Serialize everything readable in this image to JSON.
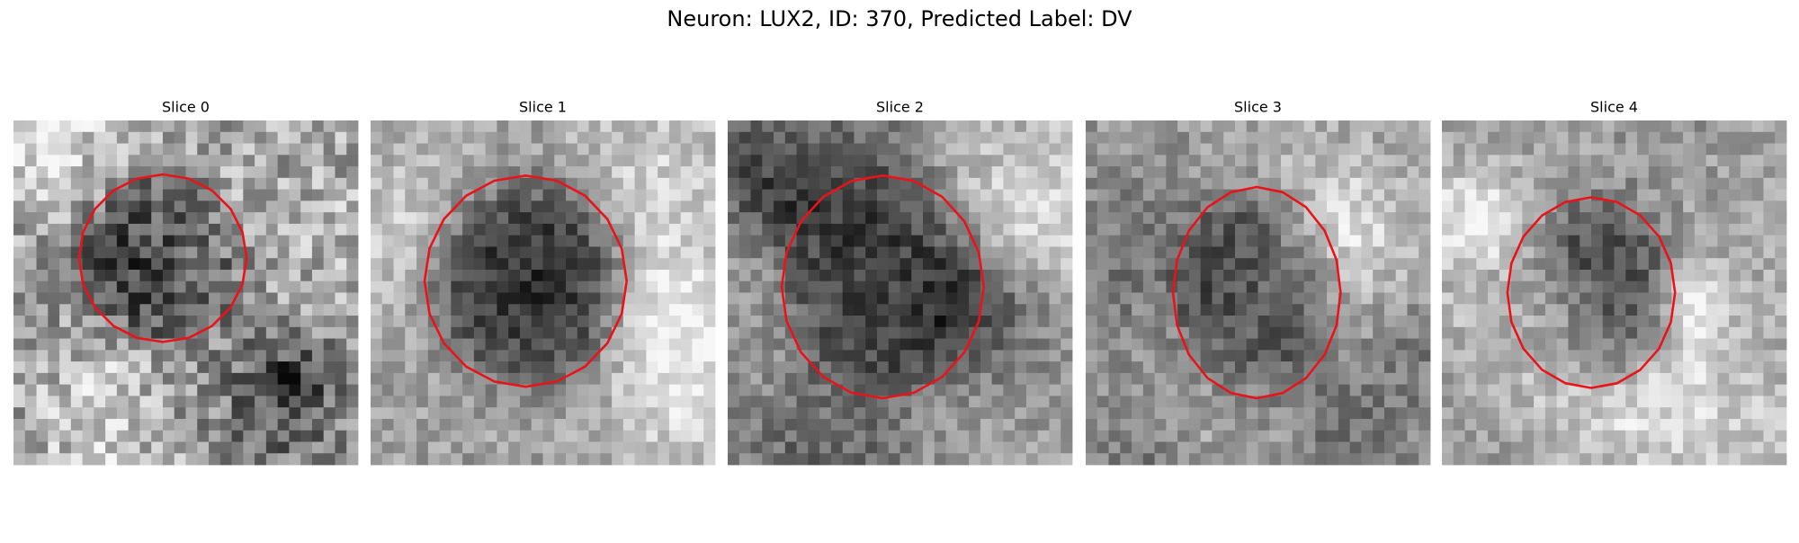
{
  "header": {
    "title": "Neuron: LUX2, ID: 370, Predicted Label: DV"
  },
  "panels": [
    {
      "title": "Slice 0"
    },
    {
      "title": "Slice 1"
    },
    {
      "title": "Slice 2"
    },
    {
      "title": "Slice 3"
    },
    {
      "title": "Slice 4"
    }
  ]
}
